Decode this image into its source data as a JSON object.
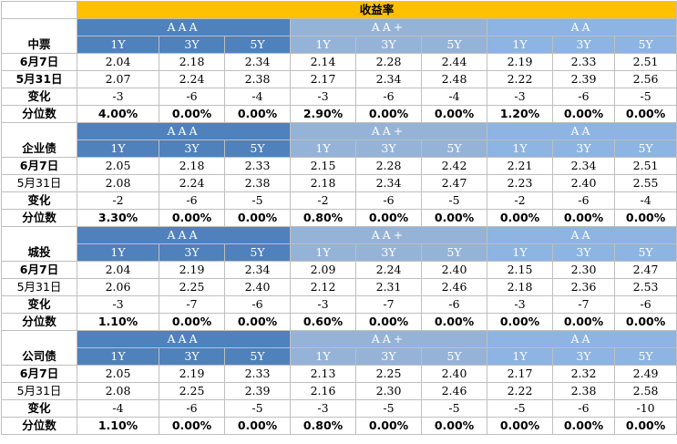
{
  "title": "收益率",
  "groups": [
    "AAA",
    "AA+",
    "AA"
  ],
  "tenors": [
    "1Y",
    "3Y",
    "5Y"
  ],
  "sections": [
    {
      "name": "中票",
      "rows": [
        {
          "label": "6月7日",
          "values": [
            "2.04",
            "2.18",
            "2.34",
            "2.14",
            "2.28",
            "2.44",
            "2.19",
            "2.33",
            "2.51"
          ]
        },
        {
          "label": "5月31日",
          "values": [
            "2.07",
            "2.24",
            "2.38",
            "2.17",
            "2.34",
            "2.48",
            "2.22",
            "2.39",
            "2.56"
          ]
        },
        {
          "label": "变化",
          "values": [
            "-3",
            "-6",
            "-4",
            "-3",
            "-6",
            "-4",
            "-3",
            "-6",
            "-5"
          ]
        },
        {
          "label": "分位数",
          "values": [
            "4.00%",
            "0.00%",
            "0.00%",
            "2.90%",
            "0.00%",
            "0.00%",
            "1.20%",
            "0.00%",
            "0.00%"
          ]
        }
      ]
    },
    {
      "name": "企业债",
      "rows": [
        {
          "label": "6月7日",
          "values": [
            "2.05",
            "2.18",
            "2.33",
            "2.15",
            "2.28",
            "2.42",
            "2.21",
            "2.34",
            "2.51"
          ]
        },
        {
          "label": "5月31日",
          "values": [
            "2.08",
            "2.24",
            "2.38",
            "2.18",
            "2.34",
            "2.47",
            "2.23",
            "2.40",
            "2.55"
          ]
        },
        {
          "label": "变化",
          "values": [
            "-2",
            "-6",
            "-5",
            "-2",
            "-6",
            "-5",
            "-2",
            "-6",
            "-4"
          ]
        },
        {
          "label": "分位数",
          "values": [
            "3.30%",
            "0.00%",
            "0.00%",
            "0.80%",
            "0.00%",
            "0.00%",
            "0.00%",
            "0.00%",
            "0.00%"
          ]
        }
      ]
    },
    {
      "name": "城投",
      "rows": [
        {
          "label": "6月7日",
          "values": [
            "2.04",
            "2.19",
            "2.34",
            "2.09",
            "2.24",
            "2.40",
            "2.15",
            "2.30",
            "2.47"
          ]
        },
        {
          "label": "5月31日",
          "values": [
            "2.06",
            "2.25",
            "2.40",
            "2.12",
            "2.31",
            "2.46",
            "2.18",
            "2.36",
            "2.53"
          ]
        },
        {
          "label": "变化",
          "values": [
            "-3",
            "-7",
            "-6",
            "-3",
            "-7",
            "-6",
            "-3",
            "-7",
            "-6"
          ]
        },
        {
          "label": "分位数",
          "values": [
            "1.10%",
            "0.00%",
            "0.00%",
            "0.60%",
            "0.00%",
            "0.00%",
            "0.00%",
            "0.00%",
            "0.00%"
          ]
        }
      ]
    },
    {
      "name": "公司债",
      "rows": [
        {
          "label": "6月7日",
          "values": [
            "2.05",
            "2.19",
            "2.33",
            "2.13",
            "2.25",
            "2.40",
            "2.17",
            "2.32",
            "2.49"
          ]
        },
        {
          "label": "5月31日",
          "values": [
            "2.08",
            "2.25",
            "2.39",
            "2.16",
            "2.30",
            "2.46",
            "2.22",
            "2.38",
            "2.58"
          ]
        },
        {
          "label": "变化",
          "values": [
            "-4",
            "-6",
            "-5",
            "-3",
            "-5",
            "-5",
            "-5",
            "-6",
            "-10"
          ]
        },
        {
          "label": "分位数",
          "values": [
            "1.10%",
            "0.00%",
            "0.00%",
            "0.80%",
            "0.00%",
            "0.00%",
            "0.00%",
            "0.00%",
            "0.00%"
          ]
        }
      ]
    }
  ]
}
